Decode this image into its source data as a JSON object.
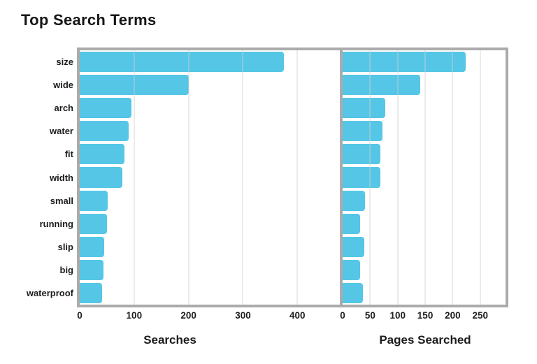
{
  "title": "Top Search Terms",
  "colors": {
    "bar": "#55C6E6",
    "frame": "#ABABAB",
    "gridline": "#E9E9E9",
    "text": "#1C1C1C",
    "background": "#FFFFFF"
  },
  "chart_data": {
    "type": "bar",
    "orientation": "horizontal",
    "title": "Top Search Terms",
    "grid": true,
    "legend": false,
    "categories": [
      "size",
      "wide",
      "arch",
      "water",
      "fit",
      "width",
      "small",
      "running",
      "slip",
      "big",
      "waterproof"
    ],
    "panels": [
      {
        "name": "Searches",
        "xlabel": "Searches",
        "values": [
          375,
          200,
          95,
          90,
          82,
          78,
          52,
          50,
          45,
          44,
          41
        ],
        "xticks": [
          0,
          100,
          200,
          300,
          400
        ],
        "xlim": [
          0,
          478
        ]
      },
      {
        "name": "Pages Searched",
        "xlabel": "Pages Searched",
        "values": [
          224,
          141,
          77,
          72,
          69,
          68,
          41,
          32,
          40,
          32,
          37
        ],
        "xticks": [
          0,
          50,
          100,
          150,
          200,
          250
        ],
        "xlim": [
          0,
          296
        ]
      }
    ]
  }
}
